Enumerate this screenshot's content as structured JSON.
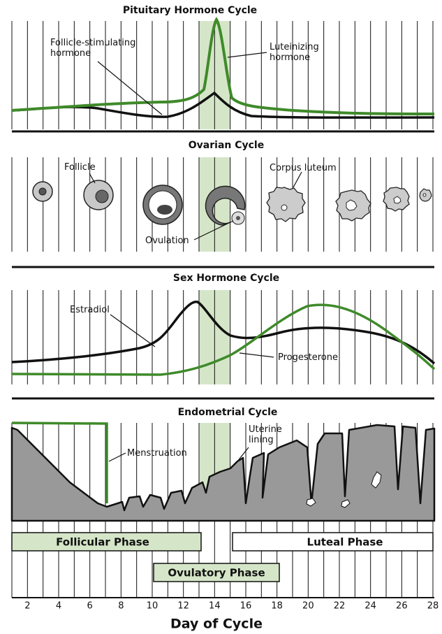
{
  "panels": [
    {
      "title": "Pituitary Hormone Cycle",
      "labels": [
        [
          "Follicle-stimulating",
          "hormone"
        ],
        [
          "Luteinizing",
          "hormone"
        ]
      ]
    },
    {
      "title": "Ovarian Cycle",
      "labels": [
        [
          "Follicle"
        ],
        [
          "Corpus luteum"
        ],
        [
          "Ovulation"
        ]
      ]
    },
    {
      "title": "Sex Hormone Cycle",
      "labels": [
        [
          "Estradiol"
        ],
        [
          "Progesterone"
        ]
      ]
    },
    {
      "title": "Endometrial Cycle",
      "labels": [
        [
          "Menstruation"
        ],
        [
          "Uterine",
          "lining"
        ]
      ]
    }
  ],
  "phases": [
    "Follicular Phase",
    "Luteal Phase",
    "Ovulatory Phase"
  ],
  "axis": {
    "ticks": [
      2,
      4,
      6,
      8,
      10,
      12,
      14,
      16,
      18,
      20,
      22,
      24,
      26,
      28
    ],
    "title": "Day of Cycle"
  }
}
